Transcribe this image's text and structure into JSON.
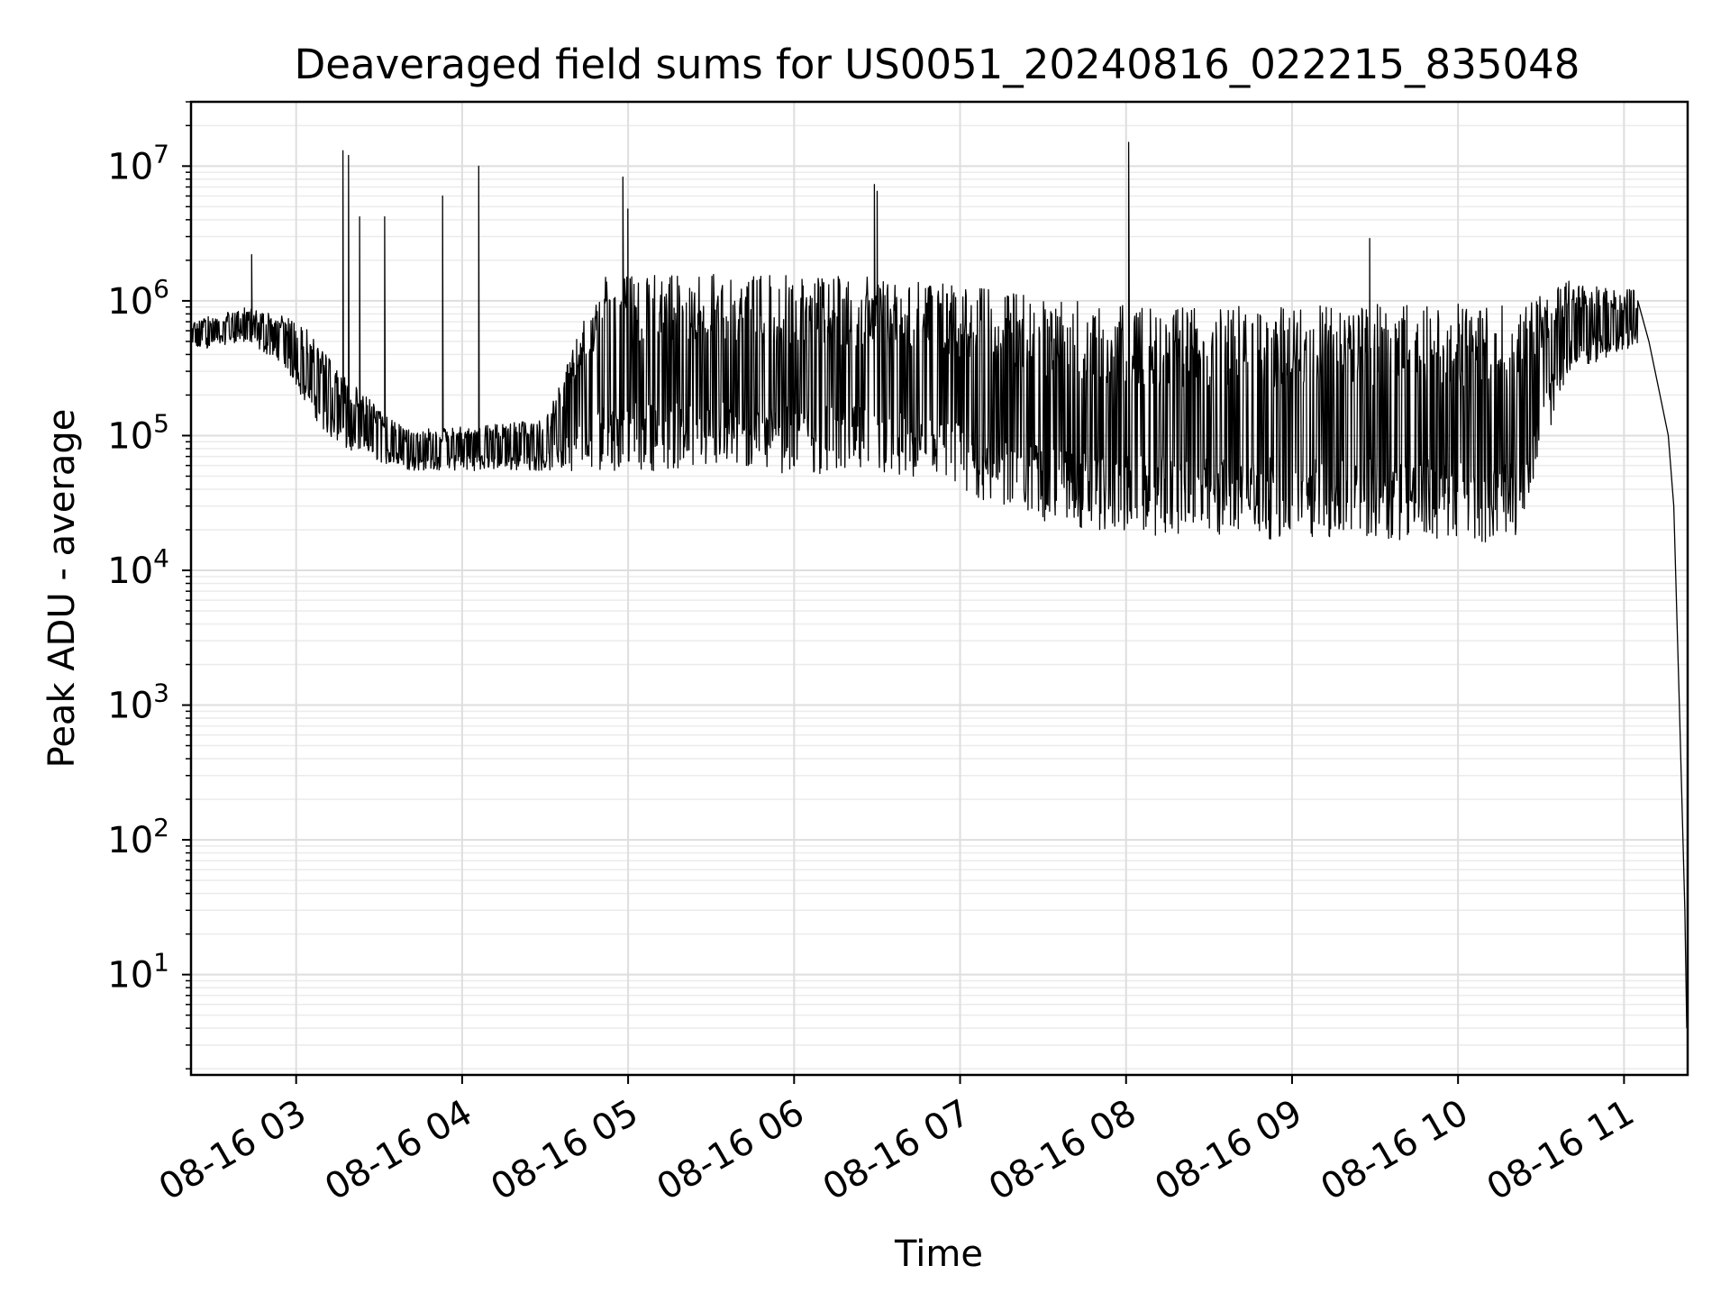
{
  "chart_data": {
    "type": "line",
    "title": "Deaveraged field sums for US0051_20240816_022215_835048",
    "xlabel": "Time",
    "ylabel": "Peak ADU - average",
    "y_scale": "log",
    "ylim": [
      1.8,
      30000000
    ],
    "xlim": [
      "2024-08-16 02:22",
      "2024-08-16 11:23"
    ],
    "grid": true,
    "grid_minor": true,
    "x_tick_labels": [
      "08-16 03",
      "08-16 04",
      "08-16 05",
      "08-16 06",
      "08-16 07",
      "08-16 08",
      "08-16 09",
      "08-16 10",
      "08-16 11"
    ],
    "x_tick_times": [
      "2024-08-16 03:00",
      "2024-08-16 04:00",
      "2024-08-16 05:00",
      "2024-08-16 06:00",
      "2024-08-16 07:00",
      "2024-08-16 08:00",
      "2024-08-16 09:00",
      "2024-08-16 10:00",
      "2024-08-16 11:00"
    ],
    "y_ticks": [
      {
        "base": "10",
        "exp": "1",
        "value": 10
      },
      {
        "base": "10",
        "exp": "2",
        "value": 100
      },
      {
        "base": "10",
        "exp": "3",
        "value": 1000
      },
      {
        "base": "10",
        "exp": "4",
        "value": 10000
      },
      {
        "base": "10",
        "exp": "5",
        "value": 100000
      },
      {
        "base": "10",
        "exp": "6",
        "value": 1000000
      },
      {
        "base": "10",
        "exp": "7",
        "value": 10000000
      }
    ],
    "series": [
      {
        "color": "#000000",
        "baseline": [
          {
            "t": "2024-08-16 02:22",
            "lo": 420000,
            "hi": 700000
          },
          {
            "t": "2024-08-16 02:40",
            "lo": 500000,
            "hi": 900000
          },
          {
            "t": "2024-08-16 02:55",
            "lo": 350000,
            "hi": 800000
          },
          {
            "t": "2024-08-16 03:05",
            "lo": 150000,
            "hi": 600000
          },
          {
            "t": "2024-08-16 03:15",
            "lo": 80000,
            "hi": 300000
          },
          {
            "t": "2024-08-16 03:40",
            "lo": 55000,
            "hi": 110000
          },
          {
            "t": "2024-08-16 04:30",
            "lo": 55000,
            "hi": 130000
          },
          {
            "t": "2024-08-16 04:50",
            "lo": 55000,
            "hi": 1500000
          },
          {
            "t": "2024-08-16 05:30",
            "lo": 55000,
            "hi": 1600000
          },
          {
            "t": "2024-08-16 06:30",
            "lo": 50000,
            "hi": 1500000
          },
          {
            "t": "2024-08-16 07:00",
            "lo": 35000,
            "hi": 1300000
          },
          {
            "t": "2024-08-16 07:40",
            "lo": 20000,
            "hi": 1000000
          },
          {
            "t": "2024-08-16 08:30",
            "lo": 17000,
            "hi": 900000
          },
          {
            "t": "2024-08-16 09:30",
            "lo": 17000,
            "hi": 950000
          },
          {
            "t": "2024-08-16 10:20",
            "lo": 16000,
            "hi": 950000
          },
          {
            "t": "2024-08-16 10:40",
            "lo": 300000,
            "hi": 1400000
          },
          {
            "t": "2024-08-16 11:05",
            "lo": 450000,
            "hi": 1200000
          }
        ],
        "spikes": [
          {
            "t": "2024-08-16 02:44",
            "v": 2200000
          },
          {
            "t": "2024-08-16 03:17",
            "v": 13000000
          },
          {
            "t": "2024-08-16 03:19",
            "v": 12000000
          },
          {
            "t": "2024-08-16 03:23",
            "v": 4200000
          },
          {
            "t": "2024-08-16 03:32",
            "v": 4200000
          },
          {
            "t": "2024-08-16 03:53",
            "v": 6000000
          },
          {
            "t": "2024-08-16 04:06",
            "v": 10000000
          },
          {
            "t": "2024-08-16 04:58",
            "v": 8300000
          },
          {
            "t": "2024-08-16 05:00",
            "v": 4800000
          },
          {
            "t": "2024-08-16 06:29",
            "v": 7300000
          },
          {
            "t": "2024-08-16 06:30",
            "v": 6500000
          },
          {
            "t": "2024-08-16 08:01",
            "v": 15000000
          },
          {
            "t": "2024-08-16 09:28",
            "v": 2900000
          }
        ],
        "tail": [
          {
            "t": "2024-08-16 11:05",
            "v": 1000000
          },
          {
            "t": "2024-08-16 11:09",
            "v": 500000
          },
          {
            "t": "2024-08-16 11:13",
            "v": 200000
          },
          {
            "t": "2024-08-16 11:16",
            "v": 100000
          },
          {
            "t": "2024-08-16 11:18",
            "v": 30000
          },
          {
            "t": "2024-08-16 11:20",
            "v": 1000
          },
          {
            "t": "2024-08-16 11:22",
            "v": 30
          },
          {
            "t": "2024-08-16 11:22:40",
            "v": 4
          }
        ]
      }
    ]
  }
}
